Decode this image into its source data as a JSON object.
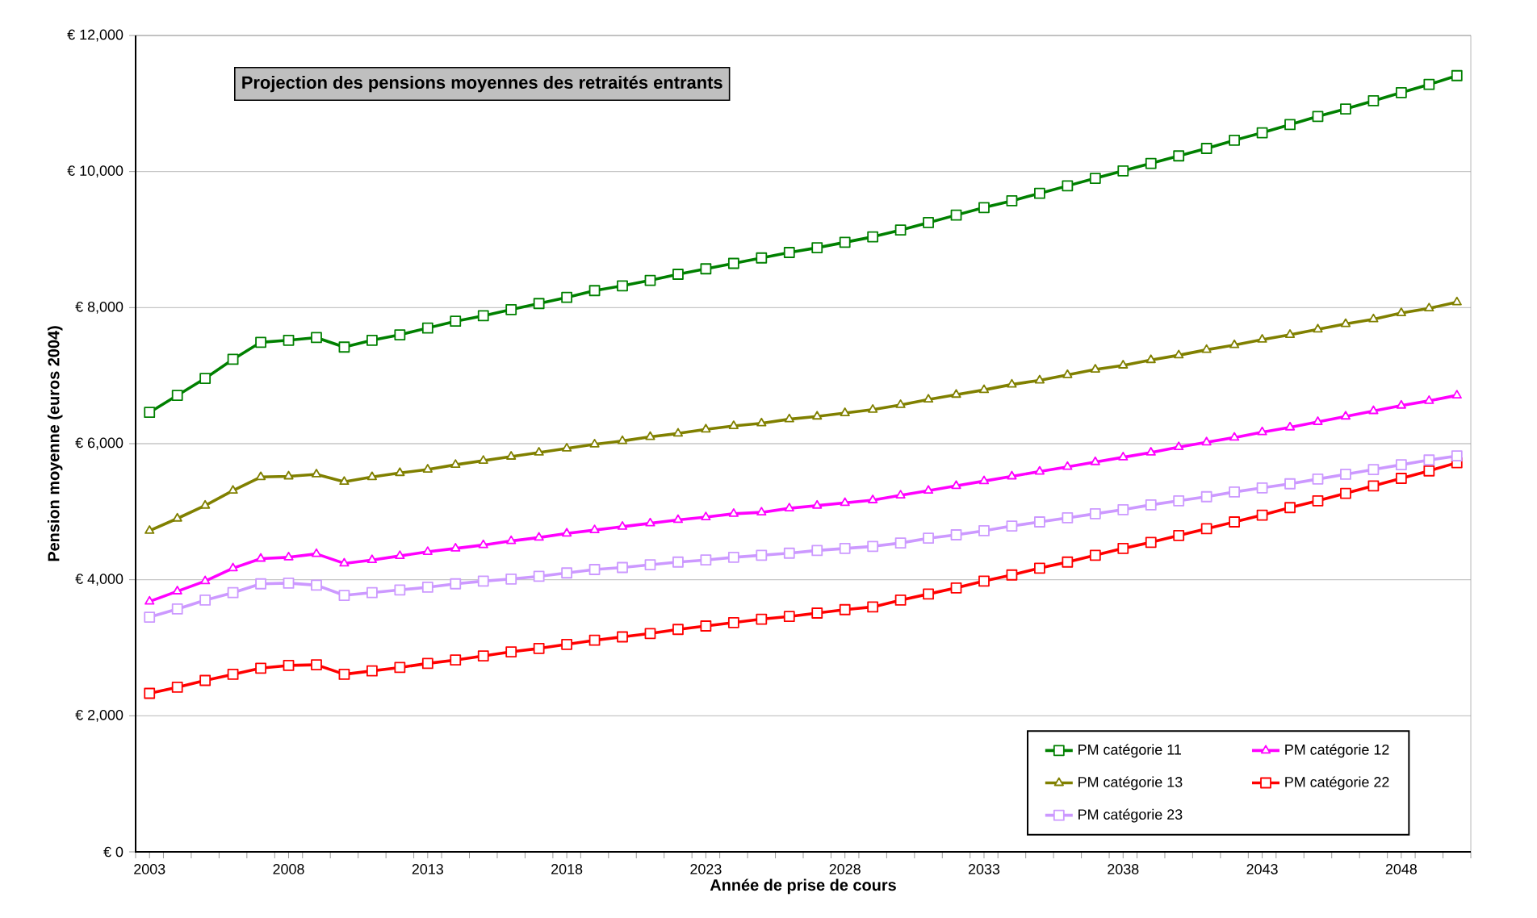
{
  "chart_data": {
    "type": "line",
    "title": "Projection des pensions moyennes des retraités entrants",
    "xlabel": "Année de prise de cours",
    "ylabel": "Pension moyenne (euros 2004)",
    "x": [
      2003,
      2004,
      2005,
      2006,
      2007,
      2008,
      2009,
      2010,
      2011,
      2012,
      2013,
      2014,
      2015,
      2016,
      2017,
      2018,
      2019,
      2020,
      2021,
      2022,
      2023,
      2024,
      2025,
      2026,
      2027,
      2028,
      2029,
      2030,
      2031,
      2032,
      2033,
      2034,
      2035,
      2036,
      2037,
      2038,
      2039,
      2040,
      2041,
      2042,
      2043,
      2044,
      2045,
      2046,
      2047,
      2048,
      2049,
      2050
    ],
    "xlim": [
      2002.5,
      2050.5
    ],
    "xticks": [
      2003,
      2008,
      2013,
      2018,
      2023,
      2028,
      2033,
      2038,
      2043,
      2048
    ],
    "ylim": [
      0,
      12000
    ],
    "yticks": [
      {
        "value": 0,
        "label": "€ 0"
      },
      {
        "value": 2000,
        "label": "€ 2,000"
      },
      {
        "value": 4000,
        "label": "€ 4,000"
      },
      {
        "value": 6000,
        "label": "€ 6,000"
      },
      {
        "value": 8000,
        "label": "€ 8,000"
      },
      {
        "value": 10000,
        "label": "€ 10,000"
      },
      {
        "value": 12000,
        "label": "€ 12,000"
      }
    ],
    "grid": "y",
    "legend": "bottom right",
    "line_style": "solid",
    "series": [
      {
        "name": "PM catégorie 11",
        "color": "#008000",
        "marker": "square",
        "values": [
          6460,
          6710,
          6960,
          7240,
          7490,
          7520,
          7560,
          7420,
          7520,
          7600,
          7700,
          7800,
          7880,
          7970,
          8060,
          8150,
          8250,
          8320,
          8400,
          8490,
          8570,
          8650,
          8730,
          8810,
          8880,
          8960,
          9040,
          9140,
          9250,
          9360,
          9470,
          9570,
          9680,
          9790,
          9900,
          10010,
          10120,
          10230,
          10340,
          10460,
          10570,
          10690,
          10810,
          10920,
          11040,
          11160,
          11280,
          11410
        ]
      },
      {
        "name": "PM catégorie 12",
        "color": "#ff00ff",
        "marker": "triangle",
        "values": [
          3680,
          3830,
          3980,
          4170,
          4310,
          4330,
          4380,
          4240,
          4290,
          4350,
          4410,
          4460,
          4510,
          4570,
          4620,
          4680,
          4730,
          4780,
          4830,
          4880,
          4920,
          4970,
          4990,
          5050,
          5090,
          5130,
          5170,
          5240,
          5310,
          5380,
          5450,
          5520,
          5590,
          5660,
          5730,
          5800,
          5870,
          5950,
          6020,
          6090,
          6170,
          6240,
          6320,
          6400,
          6480,
          6560,
          6630,
          6710
        ]
      },
      {
        "name": "PM catégorie 13",
        "color": "#808000",
        "marker": "triangle",
        "values": [
          4720,
          4900,
          5090,
          5310,
          5510,
          5520,
          5550,
          5440,
          5510,
          5570,
          5620,
          5690,
          5750,
          5810,
          5870,
          5930,
          5990,
          6040,
          6100,
          6150,
          6210,
          6260,
          6300,
          6360,
          6400,
          6450,
          6500,
          6570,
          6650,
          6720,
          6790,
          6870,
          6930,
          7010,
          7090,
          7150,
          7230,
          7300,
          7380,
          7450,
          7530,
          7600,
          7680,
          7760,
          7830,
          7920,
          7990,
          8080
        ]
      },
      {
        "name": "PM catégorie 22",
        "color": "#ff0000",
        "marker": "square",
        "values": [
          2330,
          2420,
          2520,
          2610,
          2700,
          2740,
          2750,
          2610,
          2660,
          2710,
          2770,
          2820,
          2880,
          2940,
          2990,
          3050,
          3110,
          3160,
          3210,
          3270,
          3320,
          3370,
          3420,
          3460,
          3510,
          3560,
          3600,
          3700,
          3790,
          3880,
          3980,
          4070,
          4170,
          4260,
          4360,
          4460,
          4550,
          4650,
          4750,
          4850,
          4950,
          5060,
          5160,
          5270,
          5380,
          5490,
          5600,
          5720
        ]
      },
      {
        "name": "PM catégorie 23",
        "color": "#cc99ff",
        "marker": "square",
        "values": [
          3450,
          3570,
          3700,
          3810,
          3940,
          3950,
          3920,
          3770,
          3810,
          3850,
          3890,
          3940,
          3980,
          4010,
          4050,
          4100,
          4150,
          4180,
          4220,
          4260,
          4290,
          4330,
          4360,
          4390,
          4430,
          4460,
          4490,
          4540,
          4610,
          4660,
          4720,
          4790,
          4850,
          4910,
          4970,
          5030,
          5100,
          5160,
          5220,
          5290,
          5350,
          5410,
          5480,
          5550,
          5620,
          5690,
          5760,
          5820
        ]
      }
    ]
  }
}
